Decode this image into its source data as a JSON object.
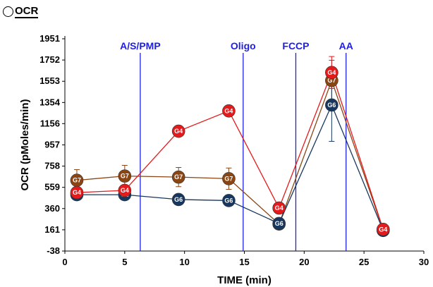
{
  "header": {
    "title": "OCR"
  },
  "chart_data": {
    "type": "line",
    "title": "OCR",
    "xlabel": "TIME (min)",
    "ylabel": "OCR (pMoles/min)",
    "xlim": [
      0,
      30
    ],
    "ylim": [
      -38,
      1951
    ],
    "xticks": [
      0,
      5,
      10,
      15,
      20,
      25,
      30
    ],
    "yticks": [
      -38,
      161,
      360,
      559,
      758,
      957,
      1156,
      1354,
      1553,
      1752,
      1951
    ],
    "grid": false,
    "injections": [
      {
        "label": "A/S/PMP",
        "x": 6.3
      },
      {
        "label": "Oligo",
        "x": 14.9
      },
      {
        "label": "FCCP",
        "x": 19.3
      },
      {
        "label": "AA",
        "x": 23.5
      }
    ],
    "series": [
      {
        "name": "G7",
        "color": "#8b4513",
        "x": [
          1.0,
          5.0,
          9.5,
          13.7,
          17.9,
          22.3,
          26.6
        ],
        "y": [
          625,
          665,
          655,
          640,
          215,
          1560,
          160
        ],
        "err": [
          100,
          100,
          90,
          100,
          30,
          190,
          20
        ]
      },
      {
        "name": "G6",
        "color": "#17375e",
        "x": [
          1.0,
          5.0,
          9.5,
          13.7,
          17.9,
          22.3,
          26.6
        ],
        "y": [
          490,
          490,
          445,
          435,
          220,
          1330,
          155
        ],
        "err": [
          20,
          20,
          20,
          20,
          20,
          340,
          20
        ]
      },
      {
        "name": "G4",
        "color": "#e41a1c",
        "x": [
          1.0,
          5.0,
          9.5,
          13.7,
          17.9,
          22.3,
          26.6
        ],
        "y": [
          510,
          530,
          1085,
          1275,
          365,
          1635,
          165
        ],
        "err": [
          20,
          30,
          20,
          40,
          30,
          150,
          20
        ]
      }
    ]
  }
}
